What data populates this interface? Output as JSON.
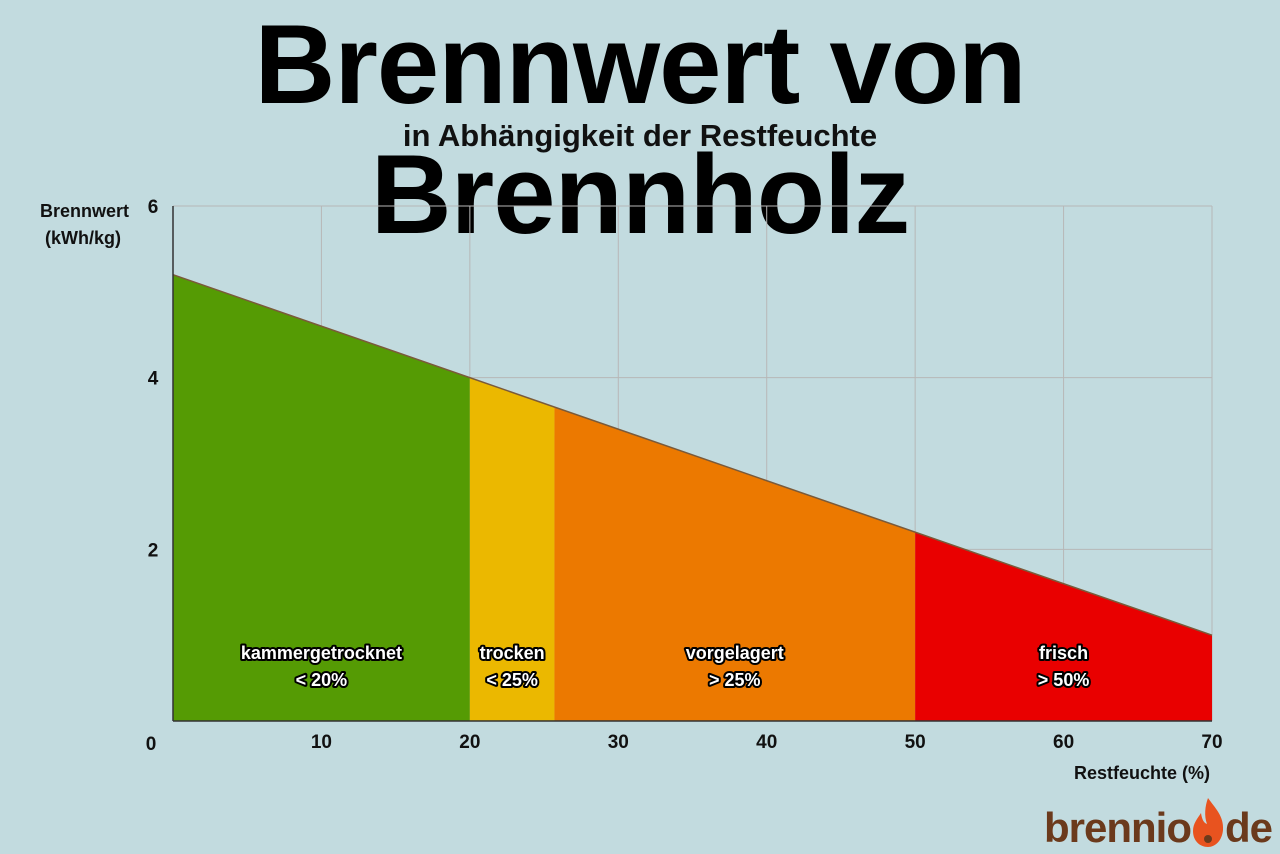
{
  "title": "Brennwert von Brennholz",
  "subtitle": "in Abhängigkeit der Restfeuchte",
  "logo": {
    "text_left": "brennio",
    "text_right": "de",
    "icon": "flame-icon",
    "color": "#6b3a1c",
    "flame_color": "#e8531f"
  },
  "chart_data": {
    "type": "area",
    "title": "Brennwert von Brennholz",
    "subtitle": "in Abhängigkeit der Restfeuchte",
    "xlabel": "Restfeuchte (%)",
    "ylabel_line1": "Brennwert",
    "ylabel_line2": "(kWh/kg)",
    "xlim": [
      0,
      70
    ],
    "ylim": [
      0,
      6
    ],
    "xticks": [
      0,
      10,
      20,
      30,
      40,
      50,
      60,
      70
    ],
    "yticks": [
      2,
      4,
      6
    ],
    "grid": true,
    "line": {
      "x": [
        0,
        70
      ],
      "y": [
        5.2,
        1.0
      ]
    },
    "bands": [
      {
        "name": "kammergetrocknet",
        "range_label": "< 20%",
        "x0": 0,
        "x1": 20,
        "color": "#559b04"
      },
      {
        "name": "trocken",
        "range_label": "< 25%",
        "x0": 20,
        "x1": 25.7,
        "color": "#ebb800"
      },
      {
        "name": "vorgelagert",
        "range_label": "> 25%",
        "x0": 25.7,
        "x1": 50,
        "color": "#ec7900"
      },
      {
        "name": "frisch",
        "range_label": "> 50%",
        "x0": 50,
        "x1": 70,
        "color": "#e90000"
      }
    ]
  }
}
